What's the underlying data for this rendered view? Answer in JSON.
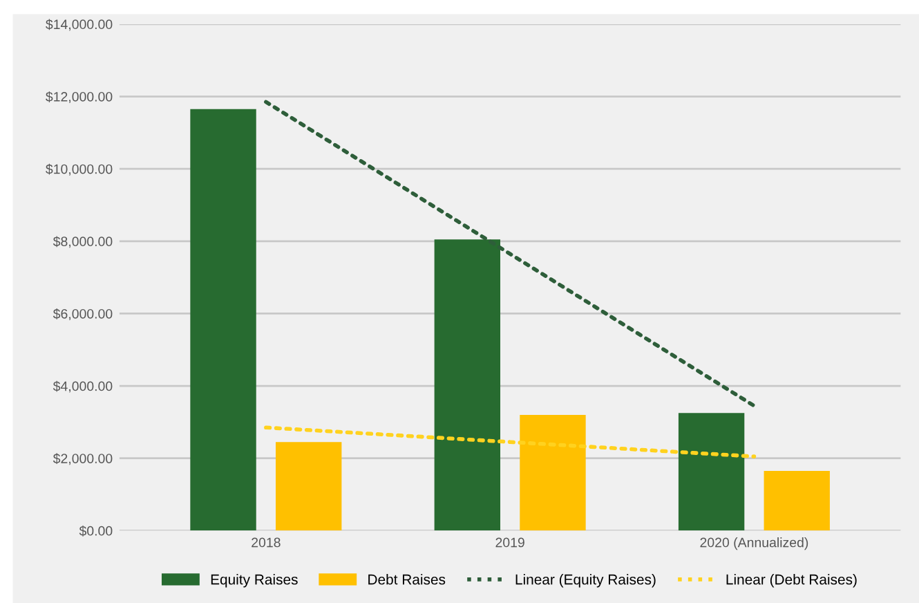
{
  "chart_data": {
    "type": "bar",
    "categories": [
      "2018",
      "2019",
      "2020 (Annualized)"
    ],
    "series": [
      {
        "name": "Equity Raises",
        "color": "#276b30",
        "values": [
          11650,
          8050,
          3250
        ]
      },
      {
        "name": "Debt Raises",
        "color": "#ffc000",
        "values": [
          2450,
          3200,
          1650
        ]
      },
      {
        "name": "Linear (Equity Raises)",
        "type": "line",
        "line_style": "dotted",
        "color": "#2e5e3a",
        "values": [
          11850,
          7650,
          3450
        ]
      },
      {
        "name": "Linear (Debt Raises)",
        "type": "line",
        "line_style": "dotted",
        "color": "#ffd21f",
        "values": [
          2850,
          2450,
          2050
        ]
      }
    ],
    "ylim": [
      0,
      14000
    ],
    "yticks": [
      {
        "value": 0,
        "label": "$0.00"
      },
      {
        "value": 2000,
        "label": "$2,000.00"
      },
      {
        "value": 4000,
        "label": "$4,000.00"
      },
      {
        "value": 6000,
        "label": "$6,000.00"
      },
      {
        "value": 8000,
        "label": "$8,000.00"
      },
      {
        "value": 10000,
        "label": "$10,000.00"
      },
      {
        "value": 12000,
        "label": "$12,000.00"
      },
      {
        "value": 14000,
        "label": "$14,000.00"
      }
    ],
    "grid": "y",
    "legend": "bottom"
  }
}
